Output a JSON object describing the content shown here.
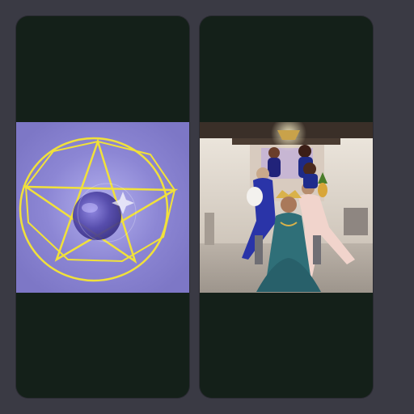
{
  "screen": {
    "background_color": "#3a3a44"
  },
  "cards": [
    {
      "name": "pentagram-card",
      "card_color": "#142019",
      "media": {
        "kind": "pentagram-artwork",
        "background_color": "#8079c8",
        "line_color": "#f3e23a",
        "orb_color": "#5b4fb5"
      }
    },
    {
      "name": "group-photo-card",
      "card_color": "#142019",
      "media": {
        "kind": "group-photo",
        "wall_color": "#d9d1c6",
        "floor_color": "#b3aaa0",
        "dress_center_color": "#2f6f78",
        "dress_side_color": "#1d3f9c"
      }
    }
  ]
}
